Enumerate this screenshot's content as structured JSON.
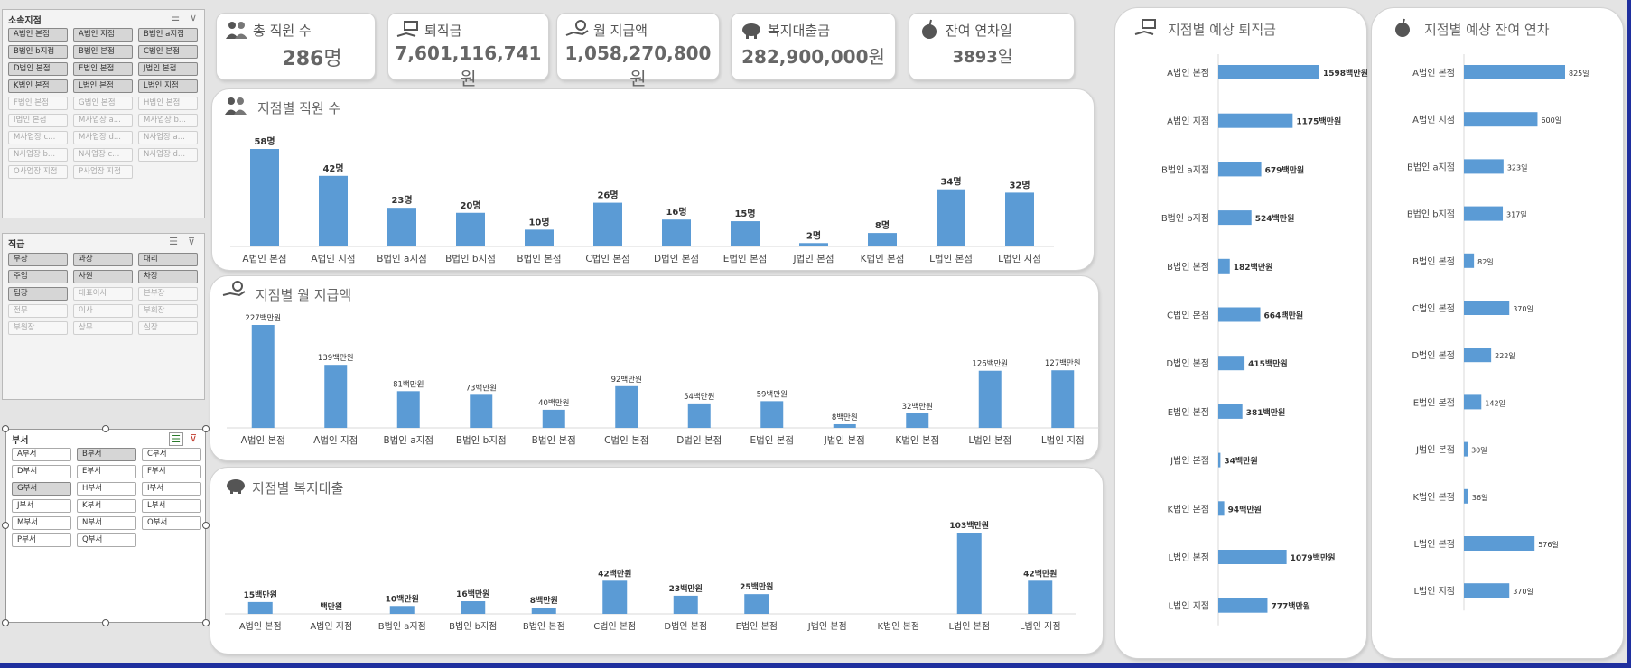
{
  "slicers": {
    "org": {
      "title": "소속지점",
      "items": [
        {
          "label": "A법인 본점",
          "state": "sel"
        },
        {
          "label": "A법인 지점",
          "state": "sel"
        },
        {
          "label": "B법인 a지점",
          "state": "sel"
        },
        {
          "label": "B법인 b지점",
          "state": "sel"
        },
        {
          "label": "B법인 본점",
          "state": "sel"
        },
        {
          "label": "C법인 본점",
          "state": "sel"
        },
        {
          "label": "D법인 본점",
          "state": "sel"
        },
        {
          "label": "E법인 본점",
          "state": "sel"
        },
        {
          "label": "J법인 본점",
          "state": "sel"
        },
        {
          "label": "K법인 본점",
          "state": "sel"
        },
        {
          "label": "L법인 본점",
          "state": "sel"
        },
        {
          "label": "L법인 지점",
          "state": "sel"
        },
        {
          "label": "F법인 본점",
          "state": "dim"
        },
        {
          "label": "G법인 본점",
          "state": "dim"
        },
        {
          "label": "H법인 본점",
          "state": "dim"
        },
        {
          "label": "I법인 본점",
          "state": "dim"
        },
        {
          "label": "M사업장 a...",
          "state": "dim"
        },
        {
          "label": "M사업장 b...",
          "state": "dim"
        },
        {
          "label": "M사업장 c...",
          "state": "dim"
        },
        {
          "label": "M사업장 d...",
          "state": "dim"
        },
        {
          "label": "N사업장 a...",
          "state": "dim"
        },
        {
          "label": "N사업장 b...",
          "state": "dim"
        },
        {
          "label": "N사업장 c...",
          "state": "dim"
        },
        {
          "label": "N사업장 d...",
          "state": "dim"
        },
        {
          "label": "O사업장 지점",
          "state": "dim"
        },
        {
          "label": "P사업장 지점",
          "state": "dim"
        }
      ]
    },
    "rank": {
      "title": "직급",
      "items": [
        {
          "label": "부장",
          "state": "sel"
        },
        {
          "label": "과장",
          "state": "sel"
        },
        {
          "label": "대리",
          "state": "sel"
        },
        {
          "label": "주임",
          "state": "sel"
        },
        {
          "label": "사원",
          "state": "sel"
        },
        {
          "label": "차장",
          "state": "sel"
        },
        {
          "label": "팀장",
          "state": "sel"
        },
        {
          "label": "대표이사",
          "state": "dim"
        },
        {
          "label": "본부장",
          "state": "dim"
        },
        {
          "label": "전무",
          "state": "dim"
        },
        {
          "label": "이사",
          "state": "dim"
        },
        {
          "label": "부회장",
          "state": "dim"
        },
        {
          "label": "부원장",
          "state": "dim"
        },
        {
          "label": "상무",
          "state": "dim"
        },
        {
          "label": "실장",
          "state": "dim"
        }
      ]
    },
    "dept": {
      "title": "부서",
      "items": [
        {
          "label": "A부서",
          "state": "white"
        },
        {
          "label": "B부서",
          "state": "sel"
        },
        {
          "label": "C부서",
          "state": "white"
        },
        {
          "label": "D부서",
          "state": "white"
        },
        {
          "label": "E부서",
          "state": "white"
        },
        {
          "label": "F부서",
          "state": "white"
        },
        {
          "label": "G부서",
          "state": "sel"
        },
        {
          "label": "H부서",
          "state": "white"
        },
        {
          "label": "I부서",
          "state": "white"
        },
        {
          "label": "J부서",
          "state": "white"
        },
        {
          "label": "K부서",
          "state": "white"
        },
        {
          "label": "L부서",
          "state": "white"
        },
        {
          "label": "M부서",
          "state": "white"
        },
        {
          "label": "N부서",
          "state": "white"
        },
        {
          "label": "O부서",
          "state": "white"
        },
        {
          "label": "P부서",
          "state": "white"
        },
        {
          "label": "Q부서",
          "state": "white"
        }
      ]
    }
  },
  "kpis": [
    {
      "label": "총 직원 수",
      "number": "286",
      "unit": "명",
      "icon": "people-icon"
    },
    {
      "label": "퇴직금",
      "number": "7,601,116,741",
      "unit": "원",
      "icon": "hand-money-icon"
    },
    {
      "label": "월 지급액",
      "number": "1,058,270,800",
      "unit": "원",
      "icon": "hand-coin-icon"
    },
    {
      "label": "복지대출금",
      "number": "282,900,000",
      "unit": "원",
      "icon": "piggy-bank-icon"
    },
    {
      "label": "잔여 연차일",
      "number": "3893",
      "unit": "일",
      "icon": "coconut-drink-icon"
    }
  ],
  "panels": {
    "employees": {
      "title": "지점별 직원 수",
      "icon": "people-icon"
    },
    "monthly": {
      "title": "지점별 월 지급액",
      "icon": "hand-coin-icon"
    },
    "loan": {
      "title": "지점별 복지대출",
      "icon": "piggy-bank-icon"
    },
    "severance": {
      "title": "지점별 예상 퇴직금",
      "icon": "hand-money-icon"
    },
    "leave": {
      "title": "지점별 예상 잔여 연차",
      "icon": "coconut-drink-icon"
    }
  },
  "colors": {
    "bar": "#5b9bd5",
    "accent_frame": "#1f2f9e"
  },
  "chart_data": [
    {
      "id": "employees",
      "type": "bar",
      "title": "지점별 직원 수",
      "categories": [
        "A법인 본점",
        "A법인 지점",
        "B법인 a지점",
        "B법인 b지점",
        "B법인 본점",
        "C법인 본점",
        "D법인 본점",
        "E법인 본점",
        "J법인 본점",
        "K법인 본점",
        "L법인 본점",
        "L법인 지점"
      ],
      "values": [
        58,
        42,
        23,
        20,
        10,
        26,
        16,
        15,
        2,
        8,
        34,
        32
      ],
      "labels": [
        "58명",
        "42명",
        "23명",
        "20명",
        "10명",
        "26명",
        "16명",
        "15명",
        "2명",
        "8명",
        "34명",
        "32명"
      ],
      "ylim": [
        0,
        58
      ]
    },
    {
      "id": "monthly",
      "type": "bar",
      "title": "지점별 월 지급액",
      "categories": [
        "A법인 본점",
        "A법인 지점",
        "B법인 a지점",
        "B법인 b지점",
        "B법인 본점",
        "C법인 본점",
        "D법인 본점",
        "E법인 본점",
        "J법인 본점",
        "K법인 본점",
        "L법인 본점",
        "L법인 지점"
      ],
      "values": [
        227,
        139,
        81,
        73,
        40,
        92,
        54,
        59,
        8,
        32,
        126,
        127
      ],
      "labels": [
        "227백만원",
        "139백만원",
        "81백만원",
        "73백만원",
        "40백만원",
        "92백만원",
        "54백만원",
        "59백만원",
        "8백만원",
        "32백만원",
        "126백만원",
        "127백만원"
      ],
      "ylim": [
        0,
        227
      ]
    },
    {
      "id": "loan",
      "type": "bar",
      "title": "지점별 복지대출",
      "categories": [
        "A법인 본점",
        "A법인 지점",
        "B법인 a지점",
        "B법인 b지점",
        "B법인 본점",
        "C법인 본점",
        "D법인 본점",
        "E법인 본점",
        "J법인 본점",
        "K법인 본점",
        "L법인 본점",
        "L법인 지점"
      ],
      "values": [
        15,
        0,
        10,
        16,
        8,
        42,
        23,
        25,
        0,
        0,
        103,
        42
      ],
      "labels": [
        "15백만원",
        "백만원",
        "10백만원",
        "16백만원",
        "8백만원",
        "42백만원",
        "23백만원",
        "25백만원",
        "",
        "",
        "103백만원",
        "42백만원"
      ],
      "ylim": [
        0,
        103
      ]
    },
    {
      "id": "severance",
      "type": "bar",
      "orientation": "horizontal",
      "title": "지점별 예상 퇴직금",
      "categories": [
        "A법인 본점",
        "A법인 지점",
        "B법인 a지점",
        "B법인 b지점",
        "B법인 본점",
        "C법인 본점",
        "D법인 본점",
        "E법인 본점",
        "J법인 본점",
        "K법인 본점",
        "L법인 본점",
        "L법인 지점"
      ],
      "values": [
        1598,
        1175,
        679,
        524,
        182,
        664,
        415,
        381,
        34,
        94,
        1079,
        777
      ],
      "labels": [
        "1598백만원",
        "1175백만원",
        "679백만원",
        "524백만원",
        "182백만원",
        "664백만원",
        "415백만원",
        "381백만원",
        "34백만원",
        "94백만원",
        "1079백만원",
        "777백만원"
      ],
      "xlim": [
        0,
        1598
      ]
    },
    {
      "id": "leave",
      "type": "bar",
      "orientation": "horizontal",
      "title": "지점별 예상 잔여 연차",
      "categories": [
        "A법인 본점",
        "A법인 지점",
        "B법인 a지점",
        "B법인 b지점",
        "B법인 본점",
        "C법인 본점",
        "D법인 본점",
        "E법인 본점",
        "J법인 본점",
        "K법인 본점",
        "L법인 본점",
        "L법인 지점"
      ],
      "values": [
        825,
        600,
        323,
        317,
        82,
        370,
        222,
        142,
        30,
        36,
        576,
        370
      ],
      "labels": [
        "825일",
        "600일",
        "323일",
        "317일",
        "82일",
        "370일",
        "222일",
        "142일",
        "30일",
        "36일",
        "576일",
        "370일"
      ],
      "xlim": [
        0,
        825
      ]
    }
  ]
}
